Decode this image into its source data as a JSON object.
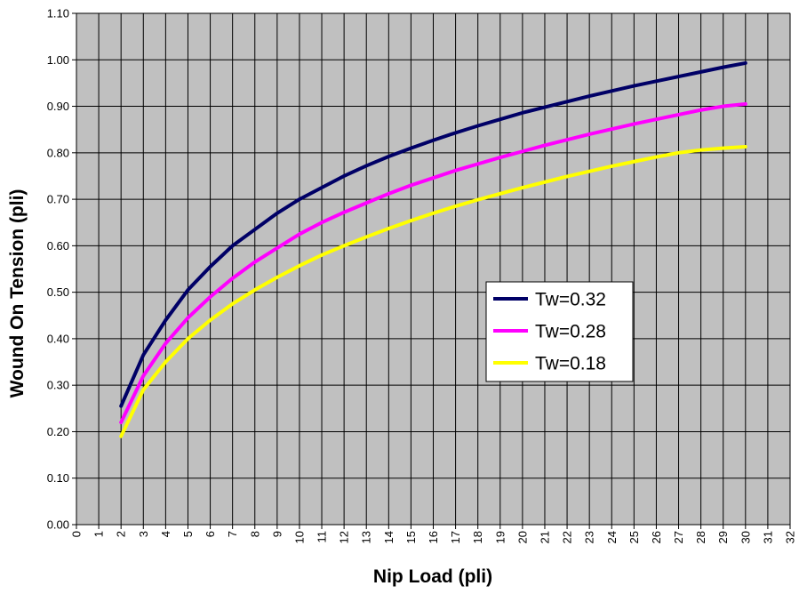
{
  "chart_data": {
    "type": "line",
    "title": "",
    "xlabel": "Nip Load (pli)",
    "ylabel": "Wound On Tension (pli)",
    "xlim": [
      0,
      32
    ],
    "ylim": [
      0,
      1.1
    ],
    "x_ticks": [
      "0",
      "1",
      "2",
      "3",
      "4",
      "5",
      "6",
      "7",
      "8",
      "9",
      "10",
      "11",
      "12",
      "13",
      "14",
      "15",
      "16",
      "17",
      "18",
      "19",
      "20",
      "21",
      "22",
      "23",
      "24",
      "25",
      "26",
      "27",
      "28",
      "29",
      "30",
      "31",
      "32"
    ],
    "y_ticks": [
      "0.00",
      "0.10",
      "0.20",
      "0.30",
      "0.40",
      "0.50",
      "0.60",
      "0.70",
      "0.80",
      "0.90",
      "1.00",
      "1.10"
    ],
    "grid": true,
    "legend_position": "center-right",
    "background_color": "#c0c0c0",
    "x": [
      2,
      3,
      4,
      5,
      6,
      7,
      8,
      9,
      10,
      11,
      12,
      13,
      14,
      15,
      16,
      17,
      18,
      19,
      20,
      21,
      22,
      23,
      24,
      25,
      26,
      27,
      28,
      29,
      30
    ],
    "series": [
      {
        "name": "Tw=0.32",
        "color": "#000066",
        "values": [
          0.255,
          0.365,
          0.44,
          0.505,
          0.555,
          0.6,
          0.635,
          0.67,
          0.7,
          0.725,
          0.75,
          0.772,
          0.792,
          0.81,
          0.827,
          0.843,
          0.858,
          0.872,
          0.886,
          0.898,
          0.91,
          0.922,
          0.933,
          0.944,
          0.954,
          0.964,
          0.974,
          0.984,
          0.993
        ]
      },
      {
        "name": "Tw=0.28",
        "color": "#ff00ff",
        "values": [
          0.22,
          0.32,
          0.39,
          0.445,
          0.49,
          0.53,
          0.565,
          0.595,
          0.625,
          0.65,
          0.672,
          0.692,
          0.712,
          0.73,
          0.746,
          0.762,
          0.776,
          0.79,
          0.803,
          0.816,
          0.828,
          0.84,
          0.851,
          0.862,
          0.872,
          0.882,
          0.892,
          0.9,
          0.905
        ]
      },
      {
        "name": "Tw=0.18",
        "color": "#ffff00",
        "values": [
          0.19,
          0.29,
          0.35,
          0.4,
          0.44,
          0.475,
          0.505,
          0.532,
          0.557,
          0.58,
          0.6,
          0.619,
          0.637,
          0.654,
          0.67,
          0.685,
          0.699,
          0.712,
          0.725,
          0.737,
          0.749,
          0.76,
          0.771,
          0.781,
          0.791,
          0.8,
          0.806,
          0.81,
          0.813
        ]
      }
    ]
  }
}
